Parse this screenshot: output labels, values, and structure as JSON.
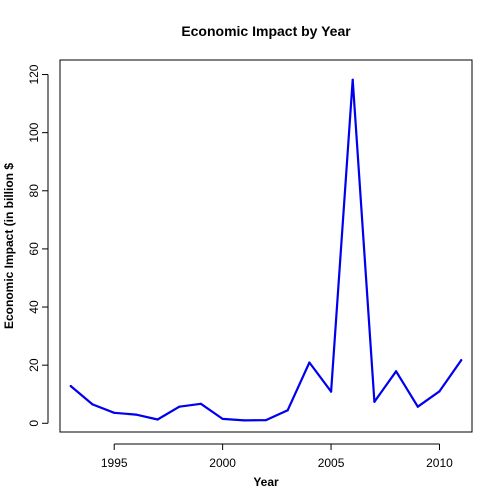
{
  "chart_data": {
    "type": "line",
    "title": "Economic Impact by Year",
    "xlabel": "Year",
    "ylabel": "Economic Impact (in billion $",
    "xlim": [
      1992.5,
      2011.5
    ],
    "ylim": [
      -3,
      125
    ],
    "x_ticks": [
      1995,
      2000,
      2005,
      2010
    ],
    "y_ticks": [
      0,
      20,
      40,
      60,
      80,
      100,
      120
    ],
    "grid": false,
    "legend": "none",
    "colors": {
      "line": "#0000ee",
      "axis": "#000000"
    },
    "series": [
      {
        "x": [
          1993,
          1994,
          1995,
          1996,
          1997,
          1998,
          1999,
          2000,
          2001,
          2002,
          2003,
          2004,
          2005,
          2006,
          2007,
          2008,
          2009,
          2010,
          2011
        ],
        "values": [
          12.8,
          6.5,
          3.6,
          3.0,
          1.3,
          5.7,
          6.7,
          1.5,
          1.0,
          1.1,
          4.5,
          20.9,
          10.9,
          118.2,
          7.4,
          17.9,
          5.7,
          11.0,
          21.7
        ]
      }
    ]
  }
}
